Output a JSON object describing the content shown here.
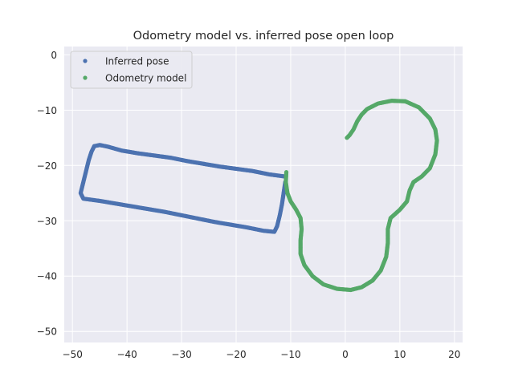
{
  "chart_data": {
    "type": "scatter",
    "title": "Odometry model vs. inferred pose open loop",
    "xlabel": "",
    "ylabel": "",
    "xlim": [
      -51.5,
      21.5
    ],
    "ylim": [
      -52,
      1.5
    ],
    "xticks": [
      -50,
      -40,
      -30,
      -20,
      -10,
      0,
      10,
      20
    ],
    "yticks": [
      0,
      -10,
      -20,
      -30,
      -40,
      -50
    ],
    "xtick_labels": [
      "−50",
      "−40",
      "−30",
      "−20",
      "−10",
      "0",
      "10",
      "20"
    ],
    "ytick_labels": [
      "0",
      "−10",
      "−20",
      "−30",
      "−40",
      "−50"
    ],
    "grid": true,
    "legend_position": "upper-left",
    "series": [
      {
        "name": "Inferred pose",
        "color": "#4c72b0",
        "points": [
          [
            -11.0,
            -22.0
          ],
          [
            -14.0,
            -21.6
          ],
          [
            -17.0,
            -21.0
          ],
          [
            -20.0,
            -20.6
          ],
          [
            -23.0,
            -20.2
          ],
          [
            -26.0,
            -19.7
          ],
          [
            -29.0,
            -19.2
          ],
          [
            -32.0,
            -18.6
          ],
          [
            -35.0,
            -18.2
          ],
          [
            -38.0,
            -17.8
          ],
          [
            -41.0,
            -17.3
          ],
          [
            -43.5,
            -16.6
          ],
          [
            -45.0,
            -16.3
          ],
          [
            -46.0,
            -16.5
          ],
          [
            -46.5,
            -17.5
          ],
          [
            -47.0,
            -19.0
          ],
          [
            -47.5,
            -21.0
          ],
          [
            -48.0,
            -23.0
          ],
          [
            -48.5,
            -25.0
          ],
          [
            -48.0,
            -26.0
          ],
          [
            -45.0,
            -26.4
          ],
          [
            -42.0,
            -26.9
          ],
          [
            -39.0,
            -27.4
          ],
          [
            -36.0,
            -27.9
          ],
          [
            -33.0,
            -28.4
          ],
          [
            -30.0,
            -29.0
          ],
          [
            -27.0,
            -29.6
          ],
          [
            -24.0,
            -30.2
          ],
          [
            -21.0,
            -30.7
          ],
          [
            -18.0,
            -31.2
          ],
          [
            -15.0,
            -31.8
          ],
          [
            -13.0,
            -32.0
          ],
          [
            -12.5,
            -31.0
          ],
          [
            -12.0,
            -29.0
          ],
          [
            -11.6,
            -27.0
          ],
          [
            -11.3,
            -25.0
          ],
          [
            -11.0,
            -23.0
          ]
        ]
      },
      {
        "name": "Odometry model",
        "color": "#55a868",
        "points": [
          [
            -10.8,
            -21.2
          ],
          [
            -10.9,
            -23.0
          ],
          [
            -10.6,
            -25.0
          ],
          [
            -10.0,
            -26.5
          ],
          [
            -9.0,
            -28.0
          ],
          [
            -8.2,
            -29.5
          ],
          [
            -8.0,
            -31.5
          ],
          [
            -8.2,
            -33.5
          ],
          [
            -8.2,
            -36.0
          ],
          [
            -7.5,
            -38.0
          ],
          [
            -6.0,
            -40.0
          ],
          [
            -4.0,
            -41.5
          ],
          [
            -1.5,
            -42.3
          ],
          [
            1.0,
            -42.5
          ],
          [
            3.0,
            -42.0
          ],
          [
            5.0,
            -40.8
          ],
          [
            6.5,
            -39.0
          ],
          [
            7.5,
            -36.5
          ],
          [
            7.8,
            -34.0
          ],
          [
            7.8,
            -31.5
          ],
          [
            8.3,
            -29.5
          ],
          [
            10.0,
            -28.0
          ],
          [
            11.3,
            -26.5
          ],
          [
            11.8,
            -24.5
          ],
          [
            12.5,
            -23.0
          ],
          [
            14.0,
            -22.0
          ],
          [
            15.5,
            -20.5
          ],
          [
            16.5,
            -18.0
          ],
          [
            16.8,
            -15.5
          ],
          [
            16.5,
            -13.5
          ],
          [
            15.5,
            -11.5
          ],
          [
            13.5,
            -9.5
          ],
          [
            11.0,
            -8.4
          ],
          [
            8.5,
            -8.3
          ],
          [
            6.0,
            -8.8
          ],
          [
            4.0,
            -9.8
          ],
          [
            3.0,
            -10.8
          ],
          [
            2.2,
            -12.0
          ],
          [
            1.5,
            -13.5
          ],
          [
            0.8,
            -14.5
          ],
          [
            0.3,
            -15.0
          ]
        ]
      }
    ]
  }
}
